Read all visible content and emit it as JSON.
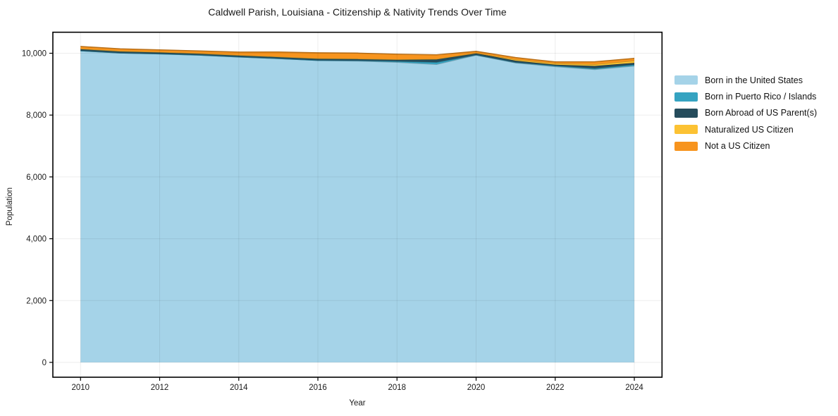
{
  "chart_data": {
    "type": "area",
    "stacked": true,
    "title": "Caldwell Parish, Louisiana - Citizenship & Nativity Trends Over Time",
    "xlabel": "Year",
    "ylabel": "Population",
    "grid": true,
    "legend_position": "right",
    "xlim": [
      2009.3,
      2024.7
    ],
    "ylim": [
      -480,
      10680
    ],
    "x": [
      2010,
      2011,
      2012,
      2013,
      2014,
      2015,
      2016,
      2017,
      2018,
      2019,
      2020,
      2021,
      2022,
      2023,
      2024
    ],
    "series": [
      {
        "name": "Born in the United States",
        "color": "#a5d3e8",
        "values": [
          10080,
          10010,
          9980,
          9940,
          9880,
          9830,
          9770,
          9750,
          9710,
          9640,
          9940,
          9690,
          9570,
          9475,
          9590
        ]
      },
      {
        "name": "Born in Puerto Rico / Islands",
        "color": "#35a3c1",
        "values": [
          0,
          0,
          0,
          0,
          0,
          0,
          0,
          15,
          30,
          70,
          5,
          15,
          25,
          35,
          40
        ]
      },
      {
        "name": "Born Abroad of US Parent(s)",
        "color": "#254c5c",
        "values": [
          60,
          58,
          55,
          52,
          55,
          55,
          60,
          55,
          60,
          95,
          55,
          55,
          35,
          80,
          60
        ]
      },
      {
        "name": "Naturalized US Citizen",
        "color": "#fcc233",
        "values": [
          5,
          5,
          5,
          5,
          5,
          5,
          5,
          5,
          5,
          10,
          10,
          40,
          40,
          50,
          70
        ]
      },
      {
        "name": "Not a US Citizen",
        "color": "#f7941e",
        "values": [
          75,
          70,
          68,
          78,
          98,
          150,
          180,
          180,
          165,
          135,
          52,
          60,
          50,
          85,
          75
        ]
      }
    ],
    "xticks": {
      "values": [
        2010,
        2012,
        2014,
        2016,
        2018,
        2020,
        2022,
        2024
      ],
      "labels": [
        "2010",
        "2012",
        "2014",
        "2016",
        "2018",
        "2020",
        "2022",
        "2024"
      ]
    },
    "yticks": {
      "values": [
        0,
        2000,
        4000,
        6000,
        8000,
        10000
      ],
      "labels": [
        "0",
        "2,000",
        "4,000",
        "6,000",
        "8,000",
        "10,000"
      ]
    }
  },
  "style_colors": {
    "spine": "#000000",
    "grid": "rgba(0,0,0,0.07)",
    "tick_text": "#1a1a1a"
  }
}
